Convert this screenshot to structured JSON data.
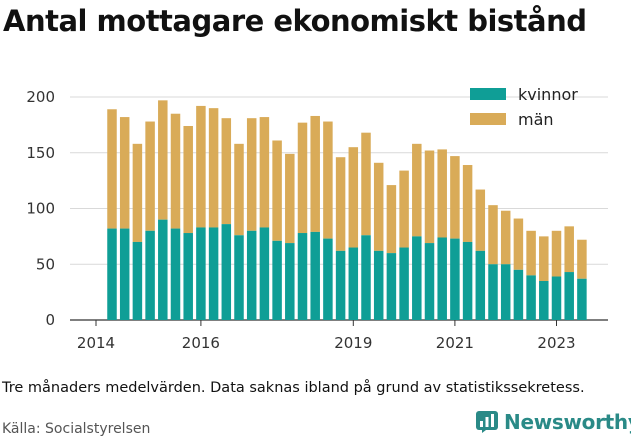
{
  "title": "Antal mottagare ekonomiskt bistånd",
  "note": "Tre månaders medelvärden. Data saknas ibland på grund av statistikssekretess.",
  "source": "Källa: Socialstyrelsen",
  "brand": "Newsworthy",
  "brand_icon": "bar-chart-logo-icon",
  "colors": {
    "kvinnor": "#0f9e96",
    "man": "#d9ab58",
    "grid": "#d9d9d9",
    "brand": "#2a8a87"
  },
  "chart_data": {
    "type": "bar",
    "stacked": true,
    "ylim": [
      0,
      200
    ],
    "yticks": [
      0,
      50,
      100,
      150,
      200
    ],
    "xticks": [
      "2014",
      "2016",
      "2019",
      "2021",
      "2023"
    ],
    "legend": "top-right",
    "grid": true,
    "categories": [
      "2014-Q2",
      "2014-Q3",
      "2014-Q4",
      "2015-Q1",
      "2015-Q2",
      "2015-Q3",
      "2015-Q4",
      "2016-Q1",
      "2016-Q2",
      "2016-Q3",
      "2016-Q4",
      "2017-Q1",
      "2017-Q2",
      "2017-Q3",
      "2017-Q4",
      "2018-Q1",
      "2018-Q2",
      "2018-Q3",
      "2018-Q4",
      "2019-Q1",
      "2019-Q2",
      "2019-Q3",
      "2019-Q4",
      "2020-Q1",
      "2020-Q2",
      "2020-Q3",
      "2020-Q4",
      "2021-Q1",
      "2021-Q2",
      "2021-Q3",
      "2021-Q4",
      "2022-Q1",
      "2022-Q2",
      "2022-Q3",
      "2022-Q4",
      "2023-Q1",
      "2023-Q2",
      "2023-Q3"
    ],
    "series": [
      {
        "name": "kvinnor",
        "values": [
          82,
          82,
          70,
          80,
          90,
          82,
          78,
          83,
          83,
          86,
          76,
          80,
          83,
          71,
          69,
          78,
          79,
          73,
          62,
          65,
          76,
          62,
          60,
          65,
          75,
          69,
          74,
          73,
          70,
          62,
          50,
          50,
          45,
          40,
          35,
          39,
          43,
          37
        ]
      },
      {
        "name": "män",
        "values": [
          107,
          100,
          88,
          98,
          107,
          103,
          96,
          109,
          107,
          95,
          82,
          101,
          99,
          90,
          80,
          99,
          104,
          105,
          84,
          90,
          92,
          79,
          61,
          69,
          83,
          83,
          79,
          74,
          69,
          55,
          53,
          48,
          46,
          40,
          40,
          41,
          41,
          35
        ]
      }
    ]
  }
}
